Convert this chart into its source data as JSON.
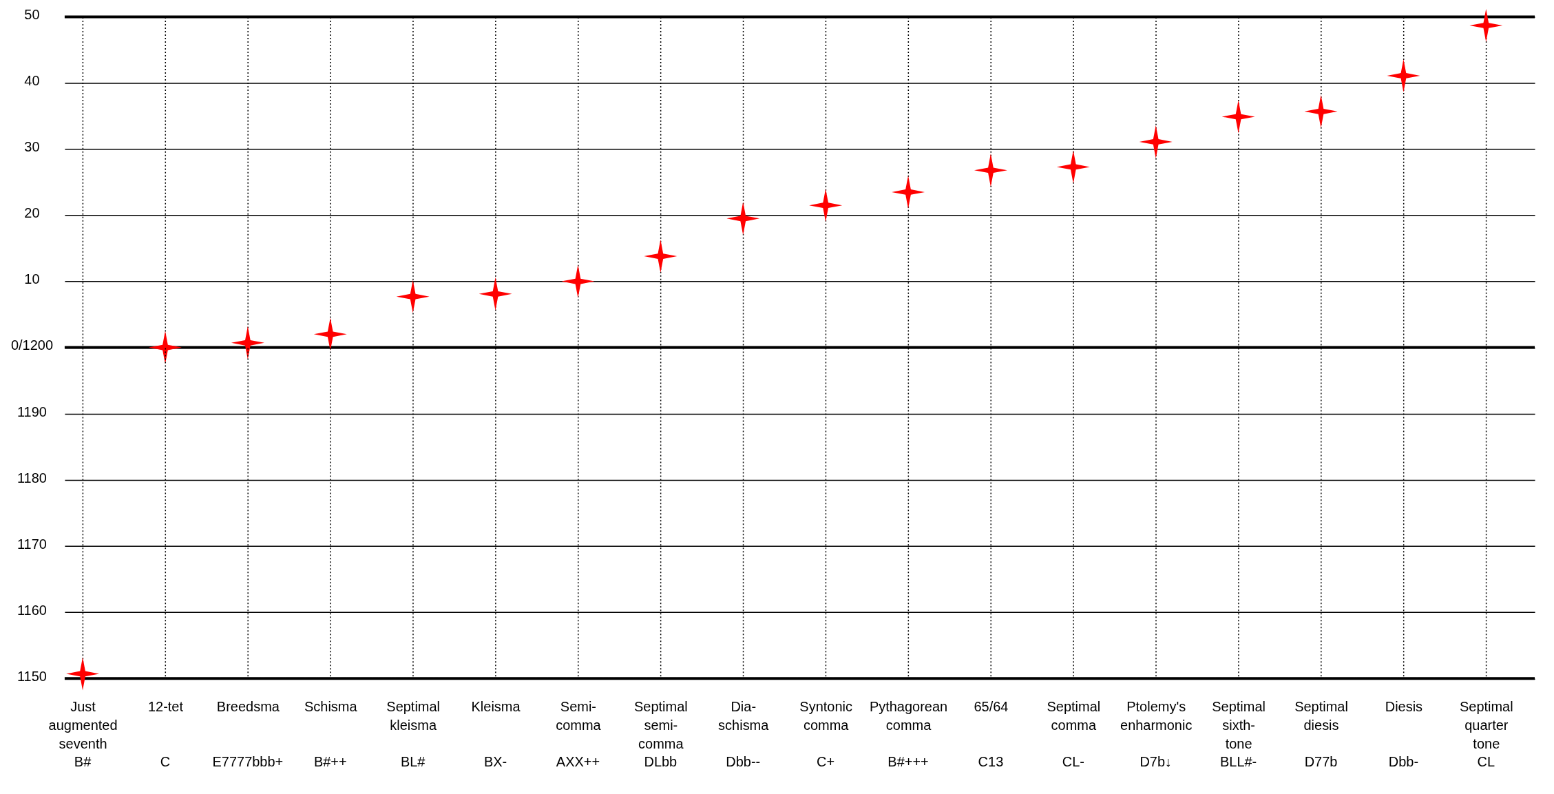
{
  "chart_data": [
    {
      "type": "scatter",
      "categories": [
        null,
        null,
        null,
        null,
        null,
        null,
        null,
        null,
        null,
        null,
        null,
        null,
        null,
        null,
        null,
        null,
        null,
        null
      ],
      "series": [
        {
          "color": "#ff0000",
          "values": [
            null,
            0,
            0.7,
            2,
            7.7,
            8.1,
            10,
            13.8,
            19.5,
            21.5,
            23.5,
            26.8,
            27.3,
            31.1,
            34.9,
            35.7,
            41.1,
            48.7
          ]
        }
      ],
      "ylim": [
        0,
        50
      ],
      "yticks": [
        {
          "value": 0,
          "label": "0/1200"
        },
        10,
        20,
        30,
        40,
        50
      ],
      "grid": true,
      "marker": "star",
      "tick_labels": "y",
      "ref_lines": [
        {
          "axis": "y",
          "value": 50,
          "color": "#000000"
        },
        {
          "axis": "y",
          "value": 0,
          "color": "#000000"
        }
      ]
    },
    {
      "type": "scatter",
      "categories": [
        "Just augmented seventh\nB#",
        "12-tet\nC",
        "Breedsma\nE7777bbb+",
        "Schisma\nB#++",
        "Septimal kleisma\nBL#",
        "Kleisma\nBX-",
        "Semi-comma\nAXX++",
        "Septimal semi-comma\nDLbb",
        "Dia-schisma\nDbb--",
        "Syntonic comma\nC+",
        "Pythagorean comma\nB#+++",
        "65/64\nC13",
        "Septimal comma\nCL-",
        "Ptolemy's enharmonic\nD7b↓",
        "Septimal sixth-tone\nBLL#-",
        "Septimal diesis\nD77b",
        "Diesis\nDbb-",
        "Septimal quarter tone\nCL"
      ],
      "series": [
        {
          "color": "#ff0000",
          "values": [
            1150.7,
            null,
            null,
            null,
            null,
            null,
            null,
            null,
            null,
            null,
            null,
            null,
            null,
            null,
            null,
            null,
            null,
            null
          ]
        }
      ],
      "ylim": [
        1150,
        1200
      ],
      "yticks": [
        1150,
        1160,
        1170,
        1180,
        1190
      ],
      "grid": true,
      "marker": "star",
      "ref_lines": [
        {
          "axis": "y",
          "value": 1150,
          "color": "#000000"
        }
      ]
    }
  ]
}
